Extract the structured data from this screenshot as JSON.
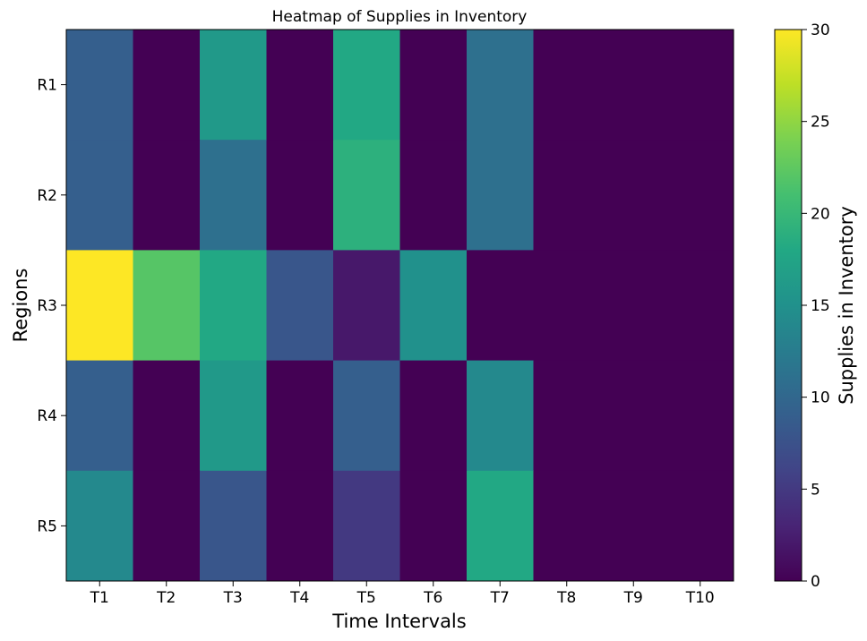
{
  "chart_data": {
    "type": "heatmap",
    "title": "Heatmap of Supplies in Inventory",
    "xlabel": "Time Intervals",
    "ylabel": "Regions",
    "x_categories": [
      "T1",
      "T2",
      "T3",
      "T4",
      "T5",
      "T6",
      "T7",
      "T8",
      "T9",
      "T10"
    ],
    "y_categories": [
      "R1",
      "R2",
      "R3",
      "R4",
      "R5"
    ],
    "values": [
      [
        9,
        0,
        16,
        0,
        18,
        0,
        11,
        0,
        0,
        0
      ],
      [
        9,
        0,
        11,
        0,
        19,
        0,
        11,
        0,
        0,
        0
      ],
      [
        30,
        22,
        18,
        8,
        2,
        15,
        0,
        0,
        0,
        0
      ],
      [
        9,
        0,
        16,
        0,
        9,
        0,
        14,
        0,
        0,
        0
      ],
      [
        14,
        0,
        8,
        0,
        5,
        0,
        18,
        0,
        0,
        0
      ]
    ],
    "colorbar": {
      "label": "Supplies in Inventory",
      "range": [
        0,
        30
      ],
      "ticks": [
        0,
        5,
        10,
        15,
        20,
        25,
        30
      ],
      "colormap": "viridis"
    }
  }
}
